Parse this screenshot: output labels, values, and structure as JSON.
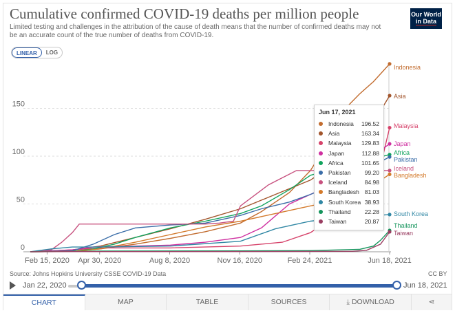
{
  "header": {
    "title": "Cumulative confirmed COVID-19 deaths per million people",
    "subtitle": "Limited testing and challenges in the attribution of the cause of death means that the number of confirmed deaths may not be an accurate count of the true number of deaths from COVID-19.",
    "logo_line1": "Our World",
    "logo_line2": "in Data"
  },
  "scale_toggle": {
    "linear": "LINEAR",
    "log": "LOG",
    "selected": "LINEAR"
  },
  "chart_data": {
    "type": "line",
    "title": "Cumulative confirmed COVID-19 deaths per million people",
    "xlabel": "",
    "ylabel": "",
    "x_ticks": [
      "Feb 15, 2020",
      "Apr 30, 2020",
      "Aug 8, 2020",
      "Nov 16, 2020",
      "Feb 24, 2021",
      "Jun 18, 2021"
    ],
    "x_tick_days": [
      24,
      99,
      199,
      299,
      399,
      513
    ],
    "xlim": [
      0,
      513
    ],
    "y_ticks": [
      0,
      50,
      100,
      150
    ],
    "ylim": [
      0,
      195
    ],
    "grid": true,
    "series": [
      {
        "name": "Indonesia",
        "color": "#c26c2f",
        "x": [
          0,
          60,
          100,
          150,
          200,
          250,
          300,
          330,
          370,
          400,
          430,
          450,
          470,
          490,
          513
        ],
        "y": [
          0,
          0.5,
          3,
          8,
          14,
          21,
          30,
          42,
          62,
          85,
          120,
          150,
          165,
          178,
          196.52
        ]
      },
      {
        "name": "Asia",
        "color": "#a2552c",
        "x": [
          0,
          30,
          60,
          100,
          150,
          200,
          250,
          300,
          350,
          400,
          450,
          490,
          513
        ],
        "y": [
          0,
          0.5,
          2,
          6,
          15,
          24,
          34,
          45,
          60,
          75,
          100,
          135,
          163.34
        ]
      },
      {
        "name": "Malaysia",
        "color": "#d6426a",
        "x": [
          0,
          60,
          100,
          200,
          300,
          360,
          400,
          430,
          460,
          480,
          500,
          513
        ],
        "y": [
          0,
          2,
          4,
          4,
          6,
          10,
          20,
          35,
          48,
          60,
          90,
          129.83
        ]
      },
      {
        "name": "Japan",
        "color": "#cf2fa0",
        "x": [
          0,
          60,
          90,
          150,
          200,
          250,
          300,
          330,
          370,
          400,
          430,
          470,
          513
        ],
        "y": [
          0,
          2,
          5,
          6,
          7,
          10,
          15,
          25,
          50,
          60,
          70,
          90,
          112.88
        ]
      },
      {
        "name": "Africa",
        "color": "#10a35d",
        "x": [
          0,
          60,
          90,
          120,
          150,
          200,
          250,
          300,
          330,
          370,
          400,
          450,
          513
        ],
        "y": [
          0,
          0.5,
          3,
          8,
          15,
          25,
          32,
          40,
          48,
          65,
          80,
          90,
          101.65
        ]
      },
      {
        "name": "Pakistan",
        "color": "#3a6da8",
        "x": [
          0,
          60,
          90,
          120,
          150,
          200,
          250,
          300,
          330,
          370,
          400,
          450,
          513
        ],
        "y": [
          0,
          1,
          8,
          18,
          25,
          28,
          30,
          38,
          45,
          52,
          60,
          75,
          99.2
        ]
      },
      {
        "name": "Iceland",
        "color": "#c7517f",
        "x": [
          0,
          30,
          45,
          60,
          70,
          100,
          200,
          250,
          270,
          290,
          300,
          340,
          380,
          400,
          513
        ],
        "y": [
          0,
          2,
          10,
          20,
          29,
          29,
          29,
          29,
          30,
          32,
          48,
          70,
          84.98,
          84.98,
          84.98
        ]
      },
      {
        "name": "Bangladesh",
        "color": "#d3792a",
        "x": [
          0,
          60,
          100,
          150,
          200,
          250,
          300,
          350,
          400,
          450,
          480,
          513
        ],
        "y": [
          0,
          0.5,
          3,
          10,
          18,
          26,
          32,
          40,
          48,
          55,
          65,
          81.03
        ]
      },
      {
        "name": "South Korea",
        "color": "#3087a4",
        "x": [
          0,
          30,
          60,
          100,
          200,
          300,
          350,
          400,
          450,
          513
        ],
        "y": [
          0,
          3,
          5,
          5,
          6,
          11,
          24,
          32,
          36,
          38.93
        ]
      },
      {
        "name": "Thailand",
        "color": "#14945c",
        "x": [
          0,
          60,
          100,
          300,
          400,
          470,
          490,
          500,
          513
        ],
        "y": [
          0,
          0.5,
          0.8,
          0.9,
          1.2,
          2.5,
          6,
          12,
          22.28
        ]
      },
      {
        "name": "Taiwan",
        "color": "#9a3e62",
        "x": [
          0,
          60,
          300,
          460,
          480,
          500,
          513
        ],
        "y": [
          0,
          0.2,
          0.3,
          0.5,
          1.5,
          8,
          20.87
        ]
      }
    ]
  },
  "tooltip": {
    "date": "Jun 17, 2021",
    "rows": [
      {
        "name": "Indonesia",
        "value": "196.52",
        "color": "#c26c2f"
      },
      {
        "name": "Asia",
        "value": "163.34",
        "color": "#a2552c"
      },
      {
        "name": "Malaysia",
        "value": "129.83",
        "color": "#d6426a"
      },
      {
        "name": "Japan",
        "value": "112.88",
        "color": "#cf2fa0"
      },
      {
        "name": "Africa",
        "value": "101.65",
        "color": "#10a35d"
      },
      {
        "name": "Pakistan",
        "value": "99.20",
        "color": "#3a6da8"
      },
      {
        "name": "Iceland",
        "value": "84.98",
        "color": "#c7517f"
      },
      {
        "name": "Bangladesh",
        "value": "81.03",
        "color": "#d3792a"
      },
      {
        "name": "South Korea",
        "value": "38.93",
        "color": "#3087a4"
      },
      {
        "name": "Thailand",
        "value": "22.28",
        "color": "#14945c"
      },
      {
        "name": "Taiwan",
        "value": "20.87",
        "color": "#9a3e62"
      }
    ]
  },
  "footer": {
    "source": "Source: Johns Hopkins University CSSE COVID-19 Data",
    "license": "CC BY",
    "timeline_start": "Jan 22, 2020",
    "timeline_end": "Jun 18, 2021",
    "timeline_start_fraction": 0.04,
    "timeline_end_fraction": 1.0
  },
  "tabs": {
    "chart": "CHART",
    "map": "MAP",
    "table": "TABLE",
    "sources": "SOURCES",
    "download": "DOWNLOAD",
    "active": "CHART"
  }
}
